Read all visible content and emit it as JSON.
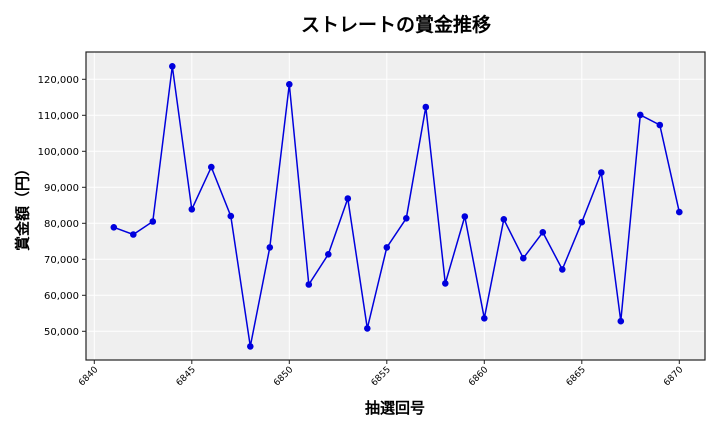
{
  "title": "ストレートの賞金推移",
  "chart_data": {
    "type": "line",
    "title": "ストレートの賞金推移",
    "xlabel": "抽選回号",
    "ylabel": "賞金額（円）",
    "x": [
      6841,
      6842,
      6843,
      6844,
      6845,
      6846,
      6847,
      6848,
      6849,
      6850,
      6851,
      6852,
      6853,
      6854,
      6855,
      6856,
      6857,
      6858,
      6859,
      6860,
      6861,
      6862,
      6863,
      6864,
      6865,
      6866,
      6867,
      6868,
      6869,
      6870
    ],
    "series": [
      {
        "name": "ストレート",
        "color": "#0000dd",
        "values": [
          78900,
          76900,
          80500,
          123600,
          83900,
          95600,
          82000,
          45800,
          73300,
          118600,
          63000,
          71400,
          86900,
          50800,
          73300,
          81400,
          112300,
          63300,
          81900,
          53600,
          81100,
          70300,
          77500,
          67200,
          80300,
          94100,
          52800,
          110100,
          107300,
          83100
        ]
      }
    ],
    "xticks": [
      "6840",
      "6845",
      "6850",
      "6855",
      "6860",
      "6865",
      "6870"
    ],
    "yticks": [
      "50,000",
      "60,000",
      "70,000",
      "80,000",
      "90,000",
      "100,000",
      "110,000",
      "120,000"
    ],
    "xlim": [
      6839.6,
      6871.3
    ],
    "ylim": [
      42000,
      127000
    ],
    "grid": true,
    "background": "#efefef",
    "legend": null
  }
}
